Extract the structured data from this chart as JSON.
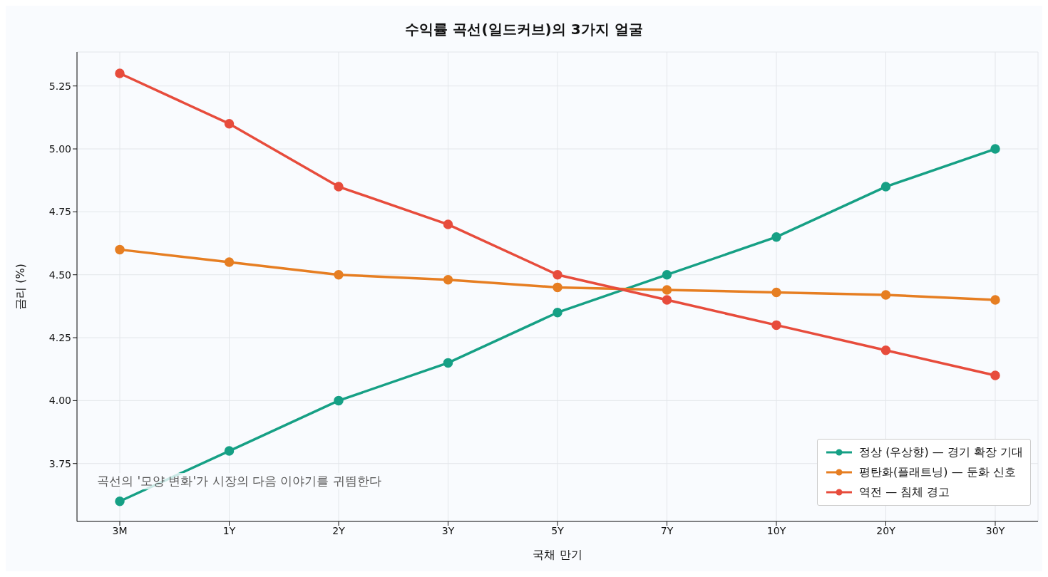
{
  "chart_data": {
    "type": "line",
    "title": "수익률 곡선(일드커브)의 3가지 얼굴",
    "xlabel": "국채 만기",
    "ylabel": "금리 (%)",
    "categories": [
      "3M",
      "1Y",
      "2Y",
      "3Y",
      "5Y",
      "7Y",
      "10Y",
      "20Y",
      "30Y"
    ],
    "series": [
      {
        "name": "정상 (우상향) — 경기 확장 기대",
        "color": "#16a085",
        "values": [
          3.6,
          3.8,
          4.0,
          4.15,
          4.35,
          4.5,
          4.65,
          4.85,
          5.0
        ]
      },
      {
        "name": "평탄화(플래트닝) — 둔화 신호",
        "color": "#e67e22",
        "values": [
          4.6,
          4.55,
          4.5,
          4.48,
          4.45,
          4.44,
          4.43,
          4.42,
          4.4
        ]
      },
      {
        "name": "역전 — 침체 경고",
        "color": "#e74c3c",
        "values": [
          5.3,
          5.1,
          4.85,
          4.7,
          4.5,
          4.4,
          4.3,
          4.2,
          4.1
        ]
      }
    ],
    "ylim": [
      3.52,
      5.385
    ],
    "yticks": [
      {
        "value": 3.75,
        "label": "3.75"
      },
      {
        "value": 4.0,
        "label": "4.00"
      },
      {
        "value": 4.25,
        "label": "4.25"
      },
      {
        "value": 4.5,
        "label": "4.50"
      },
      {
        "value": 4.75,
        "label": "4.75"
      },
      {
        "value": 5.0,
        "label": "5.00"
      },
      {
        "value": 5.25,
        "label": "5.25"
      }
    ],
    "annotations": [
      "곡선의 '모양 변화'가 시장의 다음 이야기를 귀띔한다"
    ],
    "grid": true,
    "legend": "bottom right",
    "marker": "circle",
    "line_style": "solid"
  }
}
